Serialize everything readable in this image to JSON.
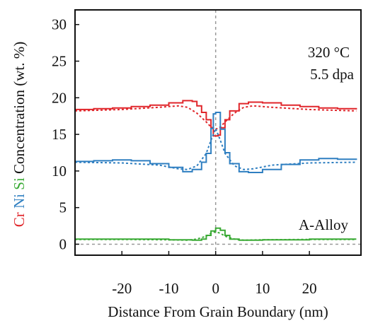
{
  "chart_data": {
    "type": "line",
    "x_range": [
      -30,
      31
    ],
    "ylim": [
      -1.5,
      32
    ],
    "xticks": [
      -20,
      -10,
      0,
      10,
      20
    ],
    "xtick_labels": [
      "-20",
      "-10",
      "0",
      "10",
      "20"
    ],
    "yticks": [
      0,
      5,
      10,
      15,
      20,
      25,
      30
    ],
    "ytick_labels": [
      "0",
      "5",
      "10",
      "15",
      "20",
      "25",
      "30"
    ],
    "xlabel": "Distance From Grain Boundary (nm)",
    "ylabel_parts": [
      {
        "text": "Cr",
        "color": "#e0262b"
      },
      {
        "text": " ",
        "color": "#111111"
      },
      {
        "text": "Ni",
        "color": "#2f7fc1"
      },
      {
        "text": " ",
        "color": "#111111"
      },
      {
        "text": "Si",
        "color": "#3aaa35"
      },
      {
        "text": " Concentration (wt. %)",
        "color": "#111111"
      }
    ],
    "annotations": {
      "temperature": "320 °C",
      "dose": "5.5 dpa",
      "alloy": "A-Alloy"
    },
    "reference_lines": {
      "vertical_x": 0,
      "horizontal_y": 0,
      "color": "#999999",
      "style": "dashed"
    },
    "grid": false,
    "series": [
      {
        "name": "Cr",
        "color": "#e0262b",
        "measured": {
          "x": [
            -30,
            -26,
            -22,
            -18,
            -14,
            -10,
            -7,
            -5,
            -4,
            -3,
            -2,
            -1,
            -0.5,
            0,
            0.5,
            1,
            2,
            3,
            5,
            7,
            10,
            14,
            18,
            22,
            26,
            30
          ],
          "y": [
            18.4,
            18.5,
            18.6,
            18.8,
            19.0,
            19.3,
            19.6,
            19.5,
            18.9,
            18.0,
            17.0,
            15.9,
            14.8,
            14.8,
            14.9,
            15.9,
            17.0,
            18.2,
            19.2,
            19.4,
            19.3,
            19.0,
            18.8,
            18.6,
            18.5,
            18.4
          ]
        },
        "model": {
          "x": [
            -30,
            -20,
            -12,
            -8,
            -6,
            -4,
            -2,
            -1,
            0,
            1,
            2,
            4,
            6,
            8,
            12,
            20,
            30
          ],
          "y": [
            18.2,
            18.4,
            18.7,
            18.9,
            18.7,
            17.9,
            16.7,
            16.0,
            15.7,
            16.0,
            16.7,
            17.9,
            18.7,
            18.9,
            18.7,
            18.4,
            18.2
          ]
        }
      },
      {
        "name": "Ni",
        "color": "#2f7fc1",
        "measured": {
          "x": [
            -30,
            -26,
            -22,
            -18,
            -14,
            -10,
            -7,
            -5,
            -3,
            -2,
            -1,
            -0.5,
            0,
            0.5,
            1,
            2,
            3,
            5,
            7,
            10,
            14,
            18,
            22,
            26,
            30
          ],
          "y": [
            11.3,
            11.4,
            11.5,
            11.4,
            11.0,
            10.5,
            9.9,
            10.2,
            11.2,
            12.4,
            15.8,
            17.8,
            18.0,
            18.0,
            15.7,
            12.5,
            11.0,
            9.9,
            9.8,
            10.2,
            10.9,
            11.5,
            11.7,
            11.6,
            11.5
          ]
        },
        "model": {
          "x": [
            -30,
            -20,
            -12,
            -8,
            -6,
            -4,
            -2,
            -1,
            0,
            1,
            2,
            4,
            6,
            8,
            12,
            20,
            30
          ],
          "y": [
            11.2,
            11.1,
            10.8,
            10.3,
            10.2,
            10.7,
            12.4,
            14.2,
            15.8,
            14.2,
            12.4,
            10.7,
            10.2,
            10.3,
            10.8,
            11.1,
            11.2
          ]
        }
      },
      {
        "name": "Si",
        "color": "#3aaa35",
        "measured": {
          "x": [
            -30,
            -20,
            -10,
            -5,
            -3,
            -2,
            -1,
            0,
            1,
            2,
            3,
            5,
            10,
            20,
            30
          ],
          "y": [
            0.7,
            0.7,
            0.6,
            0.55,
            0.7,
            1.2,
            1.8,
            2.2,
            1.9,
            1.2,
            0.7,
            0.55,
            0.6,
            0.7,
            0.7
          ]
        },
        "model": {
          "x": [
            -30,
            -20,
            -10,
            -6,
            -4,
            -2,
            -1,
            0,
            1,
            2,
            4,
            6,
            10,
            20,
            30
          ],
          "y": [
            0.65,
            0.65,
            0.6,
            0.55,
            0.7,
            1.1,
            1.5,
            1.7,
            1.5,
            1.1,
            0.7,
            0.55,
            0.6,
            0.65,
            0.65
          ]
        }
      }
    ]
  }
}
